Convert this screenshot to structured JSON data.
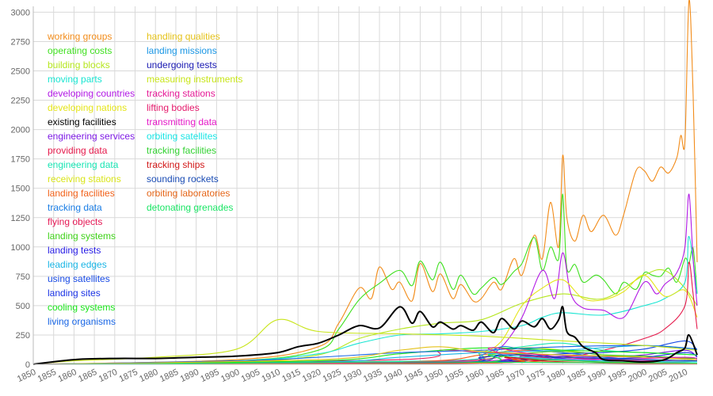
{
  "chart_data": {
    "type": "line",
    "title": "",
    "xlabel": "",
    "ylabel": "",
    "xlim": [
      1850,
      2013
    ],
    "ylim": [
      0,
      3050
    ],
    "grid": true,
    "legend_position": "top-left",
    "x_ticks": [
      "1850",
      "1855",
      "1860",
      "1865",
      "1870",
      "1875",
      "1880",
      "1885",
      "1890",
      "1895",
      "1900",
      "1905",
      "1910",
      "1915",
      "1920",
      "1925",
      "1930",
      "1935",
      "1940",
      "1945",
      "1950",
      "1955",
      "1960",
      "1965",
      "1970",
      "1975",
      "1980",
      "1985",
      "1990",
      "1995",
      "2000",
      "2005",
      "2010"
    ],
    "y_ticks": [
      "0",
      "250",
      "500",
      "750",
      "1000",
      "1250",
      "1500",
      "1750",
      "2000",
      "2250",
      "2500",
      "2750",
      "3000"
    ],
    "series": [
      {
        "name": "working groups",
        "color": "#f28c1a",
        "x": [
          1850,
          1900,
          1920,
          1925,
          1930,
          1933,
          1935,
          1938,
          1940,
          1943,
          1945,
          1948,
          1950,
          1953,
          1955,
          1958,
          1960,
          1963,
          1965,
          1968,
          1970,
          1973,
          1975,
          1977,
          1979,
          1980,
          1981,
          1983,
          1985,
          1987,
          1990,
          1993,
          1995,
          1998,
          2000,
          2002,
          2004,
          2006,
          2008,
          2009,
          2010,
          2011,
          2012,
          2013
        ],
        "values": [
          0,
          40,
          150,
          350,
          650,
          560,
          830,
          640,
          700,
          540,
          860,
          620,
          770,
          560,
          680,
          540,
          560,
          700,
          640,
          900,
          760,
          1100,
          900,
          1380,
          1000,
          1780,
          1250,
          1050,
          1270,
          1130,
          1270,
          1100,
          1280,
          1650,
          1650,
          1560,
          1680,
          1630,
          1760,
          1950,
          1900,
          3100,
          2300,
          870
        ]
      },
      {
        "name": "operating costs",
        "color": "#3fe01f",
        "x": [
          1850,
          1900,
          1920,
          1925,
          1930,
          1935,
          1940,
          1943,
          1945,
          1948,
          1950,
          1953,
          1955,
          1958,
          1960,
          1963,
          1965,
          1968,
          1970,
          1973,
          1975,
          1977,
          1979,
          1980,
          1981,
          1983,
          1985,
          1988,
          1990,
          1993,
          1995,
          1998,
          2000,
          2002,
          2004,
          2006,
          2008,
          2010,
          2011,
          2012,
          2013
        ],
        "values": [
          0,
          30,
          120,
          300,
          550,
          690,
          800,
          670,
          880,
          720,
          870,
          640,
          760,
          600,
          650,
          740,
          680,
          790,
          860,
          1080,
          800,
          1000,
          900,
          1450,
          820,
          850,
          700,
          760,
          720,
          600,
          700,
          640,
          780,
          760,
          750,
          820,
          700,
          900,
          860,
          990,
          600
        ]
      },
      {
        "name": "building blocks",
        "color": "#b5e61d",
        "x": [
          1850,
          1900,
          1920,
          1930,
          1940,
          1950,
          1960,
          1970,
          1980,
          1990,
          2000,
          2005,
          2010,
          2013
        ],
        "values": [
          0,
          20,
          80,
          220,
          300,
          350,
          380,
          520,
          600,
          560,
          760,
          800,
          650,
          500
        ]
      },
      {
        "name": "moving parts",
        "color": "#19e5d2",
        "x": [
          1850,
          1900,
          1920,
          1930,
          1940,
          1950,
          1960,
          1970,
          1975,
          1980,
          1990,
          2000,
          2005,
          2010,
          2011,
          2013
        ],
        "values": [
          0,
          30,
          90,
          180,
          250,
          260,
          280,
          330,
          400,
          440,
          420,
          500,
          560,
          700,
          1090,
          600
        ]
      },
      {
        "name": "developing countries",
        "color": "#b219e5",
        "x": [
          1850,
          1950,
          1960,
          1965,
          1970,
          1975,
          1978,
          1980,
          1982,
          1985,
          1990,
          1995,
          2000,
          2003,
          2005,
          2008,
          2010,
          2011,
          2012,
          2013
        ],
        "values": [
          0,
          20,
          50,
          150,
          400,
          800,
          560,
          950,
          600,
          480,
          460,
          400,
          700,
          600,
          680,
          780,
          1000,
          1450,
          900,
          500
        ]
      },
      {
        "name": "developing nations",
        "color": "#e5e519",
        "x": [
          1850,
          1950,
          1960,
          1965,
          1970,
          1975,
          1980,
          1985,
          1990,
          1995,
          2000,
          2005,
          2010,
          2013
        ],
        "values": [
          0,
          20,
          100,
          200,
          500,
          650,
          720,
          560,
          550,
          620,
          760,
          580,
          630,
          400
        ]
      },
      {
        "name": "existing facilities",
        "color": "#000000",
        "x": [
          1850,
          1860,
          1870,
          1880,
          1890,
          1900,
          1910,
          1915,
          1920,
          1925,
          1930,
          1935,
          1940,
          1943,
          1945,
          1948,
          1950,
          1953,
          1955,
          1958,
          1960,
          1963,
          1965,
          1968,
          1970,
          1973,
          1975,
          1977,
          1979,
          1980,
          1981,
          1983,
          1985,
          1988,
          1990,
          1995,
          2000,
          2005,
          2008,
          2010,
          2011,
          2013
        ],
        "values": [
          0,
          40,
          50,
          50,
          60,
          70,
          100,
          150,
          180,
          250,
          330,
          310,
          490,
          350,
          450,
          320,
          360,
          300,
          330,
          290,
          360,
          270,
          390,
          300,
          370,
          320,
          390,
          300,
          380,
          490,
          280,
          230,
          150,
          100,
          40,
          30,
          20,
          40,
          100,
          140,
          250,
          80
        ]
      },
      {
        "name": "engineering services",
        "color": "#7d19e5",
        "x": [
          1850,
          1950,
          1970,
          1980,
          1990,
          2000,
          2010,
          2013
        ],
        "values": [
          0,
          10,
          40,
          70,
          60,
          80,
          120,
          60
        ]
      },
      {
        "name": "providing data",
        "color": "#e5194b",
        "x": [
          1850,
          1960,
          1980,
          1990,
          2000,
          2005,
          2010,
          2011,
          2012,
          2013
        ],
        "values": [
          0,
          20,
          60,
          120,
          220,
          300,
          500,
          870,
          600,
          300
        ]
      },
      {
        "name": "engineering data",
        "color": "#19e5b4",
        "x": [
          1850,
          1950,
          1960,
          1970,
          1980,
          1990,
          2000,
          2013
        ],
        "values": [
          0,
          30,
          100,
          150,
          180,
          120,
          100,
          80
        ]
      },
      {
        "name": "receiving stations",
        "color": "#d9e519",
        "x": [
          1850,
          1950,
          1960,
          1970,
          1980,
          1990,
          2000,
          2013
        ],
        "values": [
          0,
          20,
          60,
          140,
          120,
          80,
          60,
          40
        ]
      },
      {
        "name": "landing facilities",
        "color": "#f26119",
        "x": [
          1850,
          1940,
          1960,
          1970,
          1980,
          1990,
          2000,
          2013
        ],
        "values": [
          0,
          20,
          80,
          120,
          100,
          60,
          40,
          30
        ]
      },
      {
        "name": "tracking data",
        "color": "#197de5",
        "x": [
          1850,
          1950,
          1960,
          1965,
          1970,
          1980,
          1990,
          2000,
          2013
        ],
        "values": [
          0,
          10,
          80,
          150,
          130,
          100,
          60,
          40,
          30
        ]
      },
      {
        "name": "flying objects",
        "color": "#e51955",
        "x": [
          1850,
          1940,
          1950,
          1960,
          1970,
          1980,
          1990,
          2000,
          2013
        ],
        "values": [
          0,
          40,
          120,
          100,
          90,
          80,
          70,
          60,
          50
        ]
      },
      {
        "name": "landing systems",
        "color": "#3fd219",
        "x": [
          1850,
          1950,
          1960,
          1970,
          1980,
          1990,
          2000,
          2013
        ],
        "values": [
          0,
          10,
          40,
          90,
          110,
          80,
          70,
          50
        ]
      },
      {
        "name": "landing tests",
        "color": "#2419e5",
        "x": [
          1850,
          1950,
          1960,
          1970,
          1980,
          1990,
          2013
        ],
        "values": [
          0,
          10,
          60,
          80,
          50,
          30,
          20
        ]
      },
      {
        "name": "leading edges",
        "color": "#19b5e5",
        "x": [
          1850,
          1920,
          1940,
          1960,
          1980,
          2000,
          2013
        ],
        "values": [
          0,
          20,
          60,
          100,
          120,
          160,
          130
        ]
      },
      {
        "name": "using satellites",
        "color": "#194be5",
        "x": [
          1850,
          1960,
          1970,
          1980,
          1990,
          2000,
          2010,
          2013
        ],
        "values": [
          0,
          10,
          60,
          90,
          100,
          130,
          200,
          120
        ]
      },
      {
        "name": "landing sites",
        "color": "#1932e5",
        "x": [
          1850,
          1960,
          1970,
          1980,
          1990,
          2000,
          2010,
          2013
        ],
        "values": [
          0,
          20,
          70,
          60,
          50,
          60,
          100,
          70
        ]
      },
      {
        "name": "cooling systems",
        "color": "#19e519",
        "x": [
          1850,
          1920,
          1940,
          1960,
          1980,
          2000,
          2013
        ],
        "values": [
          0,
          30,
          90,
          140,
          120,
          100,
          80
        ]
      },
      {
        "name": "living organisms",
        "color": "#1966e5",
        "x": [
          1850,
          1900,
          1920,
          1940,
          1960,
          1980,
          2000,
          2013
        ],
        "values": [
          0,
          30,
          60,
          100,
          120,
          150,
          160,
          130
        ]
      },
      {
        "name": "handling qualities",
        "color": "#e5c219",
        "x": [
          1850,
          1920,
          1940,
          1950,
          1960,
          1980,
          2000,
          2013
        ],
        "values": [
          0,
          40,
          120,
          150,
          110,
          80,
          60,
          40
        ]
      },
      {
        "name": "landing missions",
        "color": "#1996e5",
        "x": [
          1850,
          1960,
          1970,
          1980,
          1990,
          2013
        ],
        "values": [
          0,
          10,
          60,
          40,
          30,
          20
        ]
      },
      {
        "name": "undergoing tests",
        "color": "#1919b2",
        "x": [
          1850,
          1950,
          1970,
          1990,
          2013
        ],
        "values": [
          0,
          20,
          40,
          30,
          20
        ]
      },
      {
        "name": "measuring instruments",
        "color": "#c8e519",
        "x": [
          1850,
          1860,
          1880,
          1900,
          1910,
          1920,
          1940,
          1960,
          1980,
          2000,
          2013
        ],
        "values": [
          0,
          30,
          60,
          130,
          380,
          280,
          260,
          240,
          200,
          160,
          120
        ]
      },
      {
        "name": "tracking stations",
        "color": "#e51996",
        "x": [
          1850,
          1955,
          1962,
          1970,
          1980,
          1990,
          2013
        ],
        "values": [
          0,
          30,
          140,
          100,
          60,
          40,
          20
        ]
      },
      {
        "name": "lifting bodies",
        "color": "#e5196b",
        "x": [
          1850,
          1960,
          1970,
          1980,
          1990,
          2013
        ],
        "values": [
          0,
          10,
          70,
          40,
          20,
          10
        ]
      },
      {
        "name": "transmitting data",
        "color": "#e519c8",
        "x": [
          1850,
          1950,
          1970,
          1990,
          2010,
          2013
        ],
        "values": [
          0,
          20,
          50,
          40,
          60,
          40
        ]
      },
      {
        "name": "orbiting satellites",
        "color": "#19e5e5",
        "x": [
          1850,
          1955,
          1962,
          1970,
          1990,
          2013
        ],
        "values": [
          0,
          10,
          90,
          60,
          30,
          20
        ]
      },
      {
        "name": "tracking facilities",
        "color": "#32d232",
        "x": [
          1850,
          1955,
          1962,
          1970,
          1990,
          2013
        ],
        "values": [
          0,
          10,
          80,
          50,
          20,
          10
        ]
      },
      {
        "name": "tracking ships",
        "color": "#d21919",
        "x": [
          1850,
          1960,
          1966,
          1975,
          1990,
          2013
        ],
        "values": [
          0,
          10,
          60,
          30,
          10,
          5
        ]
      },
      {
        "name": "sounding rockets",
        "color": "#194bb4",
        "x": [
          1850,
          1950,
          1965,
          1980,
          2000,
          2013
        ],
        "values": [
          0,
          10,
          80,
          60,
          40,
          30
        ]
      },
      {
        "name": "orbiting laboratories",
        "color": "#e56619",
        "x": [
          1850,
          1960,
          1968,
          1975,
          2000,
          2013
        ],
        "values": [
          0,
          10,
          40,
          20,
          10,
          5
        ]
      },
      {
        "name": "detonating grenades",
        "color": "#19e564",
        "x": [
          1850,
          1900,
          1940,
          1980,
          2013
        ],
        "values": [
          0,
          10,
          20,
          15,
          10
        ]
      }
    ]
  }
}
